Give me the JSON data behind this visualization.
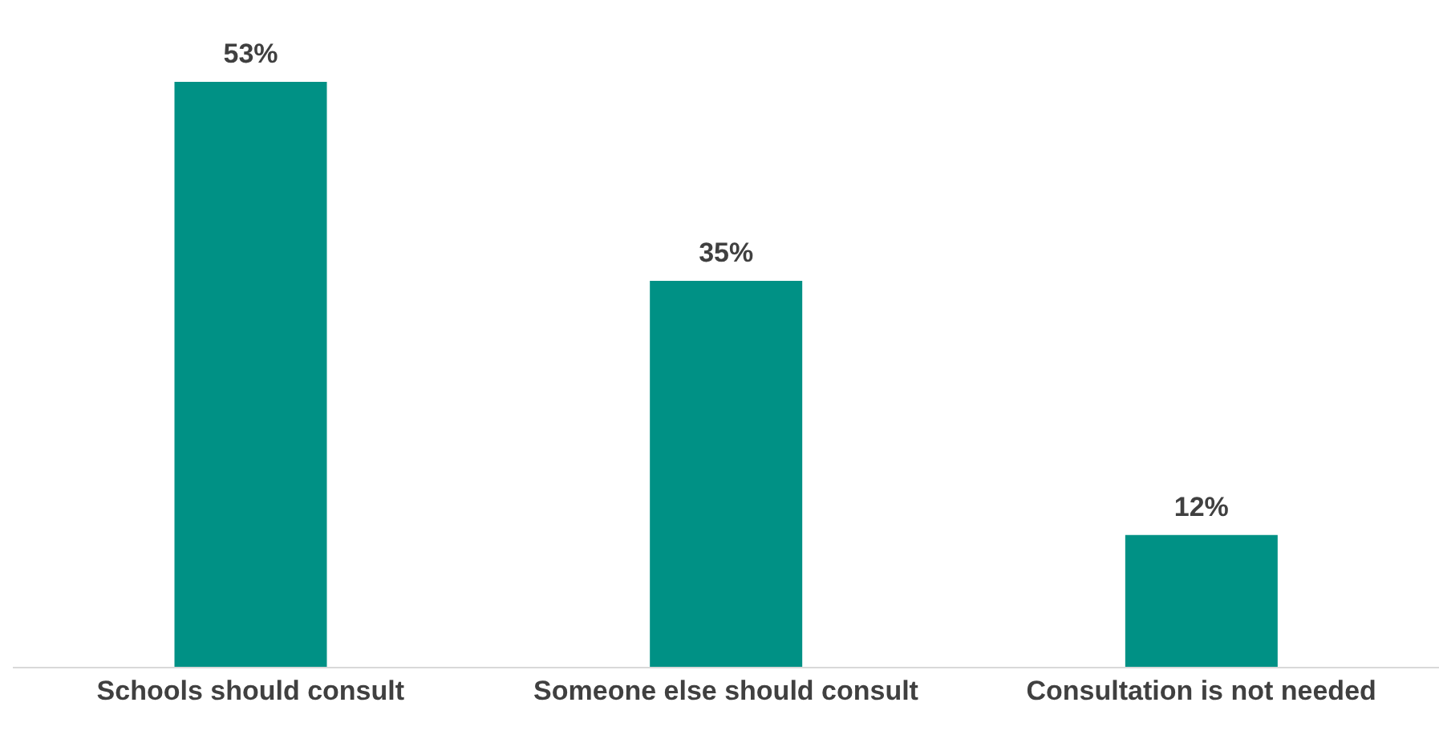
{
  "chart_data": {
    "type": "bar",
    "categories": [
      "Schools should consult",
      "Someone else should consult",
      "Consultation is not needed"
    ],
    "values": [
      53,
      35,
      12
    ],
    "color": "#009185",
    "value_labels": [
      "53%",
      "35%",
      "12%"
    ],
    "grid": false
  }
}
